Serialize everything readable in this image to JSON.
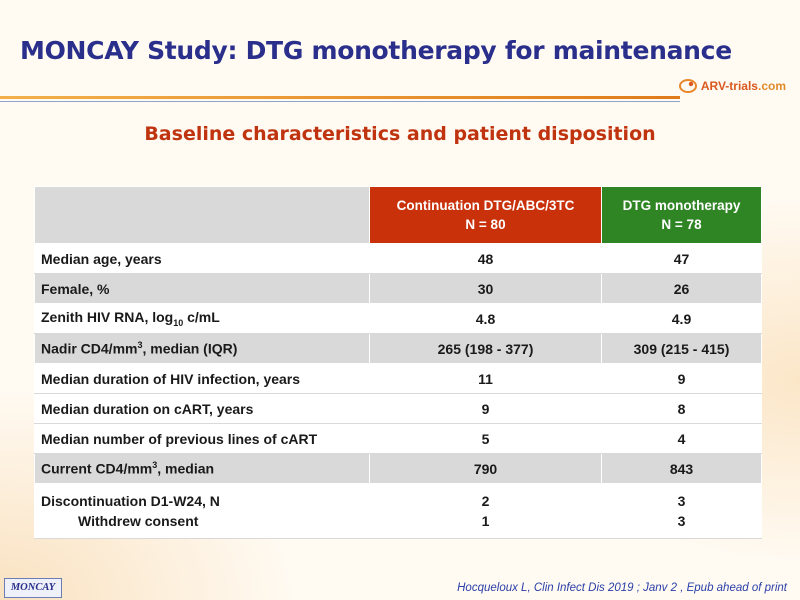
{
  "slide": {
    "title": "MONCAY Study: DTG monotherapy for maintenance",
    "subtitle": "Baseline characteristics and patient disposition",
    "logo_text": "ARV-trials",
    "logo_suffix": ".com",
    "badge": "MONCAY",
    "citation": "Hocqueloux L, Clin Infect Dis 2019 ; Janv 2 , Epub ahead of print"
  },
  "colors": {
    "title": "#2a2f8c",
    "subtitle": "#c0330f",
    "continuation_header": "#c8310a",
    "monotherapy_header": "#2f8424",
    "row_shade": "#d9d9d9"
  },
  "table": {
    "columns": [
      {
        "line1": "Continuation  DTG/ABC/3TC",
        "line2": "N = 80"
      },
      {
        "line1": "DTG  monotherapy",
        "line2": "N = 78"
      }
    ],
    "rows": [
      {
        "label": "Median age, years",
        "cont": "48",
        "mono": "47"
      },
      {
        "label": "Female, %",
        "cont": "30",
        "mono": "26"
      },
      {
        "label_pre": "Zenith HIV RNA,  log",
        "label_sub": "10",
        "label_post": " c/mL",
        "cont": "4.8",
        "mono": "4.9"
      },
      {
        "label_pre": "Nadir CD4/mm",
        "label_sup": "3",
        "label_post": ", median (IQR)",
        "cont": "265 (198 - 377)",
        "mono": "309 (215 - 415)"
      },
      {
        "label": "Median duration of HIV infection, years",
        "cont": "11",
        "mono": "9"
      },
      {
        "label": "Median duration on cART, years",
        "cont": "9",
        "mono": "8"
      },
      {
        "label": "Median number of previous lines of cART",
        "cont": "5",
        "mono": "4"
      },
      {
        "label_pre": "Current CD4/mm",
        "label_sup": "3",
        "label_post": ", median",
        "cont": "790",
        "mono": "843"
      },
      {
        "label": "Discontinuation D1-W24, N",
        "sublabel": "Withdrew consent",
        "cont": "2",
        "cont_sub": "1",
        "mono": "3",
        "mono_sub": "3"
      }
    ]
  }
}
